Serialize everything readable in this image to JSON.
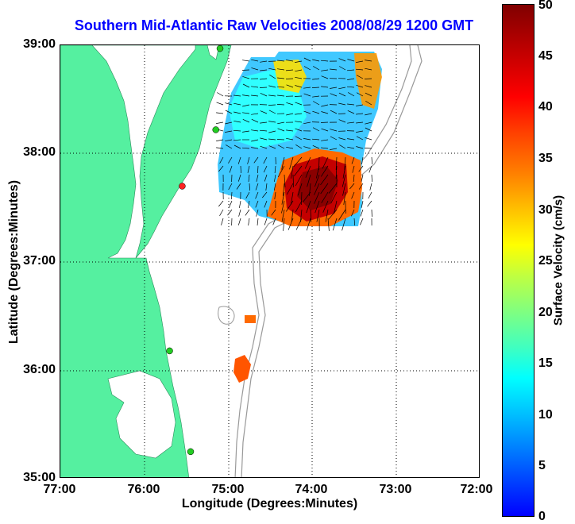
{
  "title": "Southern Mid-Atlantic Raw Velocities 2008/08/29 1200 GMT",
  "map": {
    "x_label": "Longitude (Degrees:Minutes)",
    "y_label": "Latitude (Degrees:Minutes)",
    "lon_range": [
      -77,
      -72
    ],
    "lat_range": [
      35,
      39
    ],
    "x_ticks": [
      {
        "value": -77,
        "label": "77:00"
      },
      {
        "value": -76,
        "label": "76:00"
      },
      {
        "value": -75,
        "label": "75:00"
      },
      {
        "value": -74,
        "label": "74:00"
      },
      {
        "value": -73,
        "label": "73:00"
      },
      {
        "value": -72,
        "label": "72:00"
      }
    ],
    "y_ticks": [
      {
        "value": 39,
        "label": "39:00"
      },
      {
        "value": 38,
        "label": "38:00"
      },
      {
        "value": 37,
        "label": "37:00"
      },
      {
        "value": 36,
        "label": "36:00"
      },
      {
        "value": 35,
        "label": "35:00"
      }
    ],
    "grid": "dotted",
    "land_color": "#55f0a0",
    "bathymetry_color": "#999999",
    "radar_stations": [
      {
        "lon": -75.1,
        "lat": 38.97,
        "color": "#22cc22"
      },
      {
        "lon": -75.15,
        "lat": 38.22,
        "color": "#22cc22"
      },
      {
        "lon": -75.55,
        "lat": 37.7,
        "color": "#ff2222"
      },
      {
        "lon": -75.7,
        "lat": 36.18,
        "color": "#22cc22"
      },
      {
        "lon": -75.45,
        "lat": 35.25,
        "color": "#22cc22"
      }
    ]
  },
  "colorbar": {
    "label": "Surface Velocity (cm/s)",
    "min": 0,
    "max": 50,
    "ticks": [
      "0",
      "5",
      "10",
      "15",
      "20",
      "25",
      "30",
      "35",
      "40",
      "45",
      "50"
    ]
  }
}
